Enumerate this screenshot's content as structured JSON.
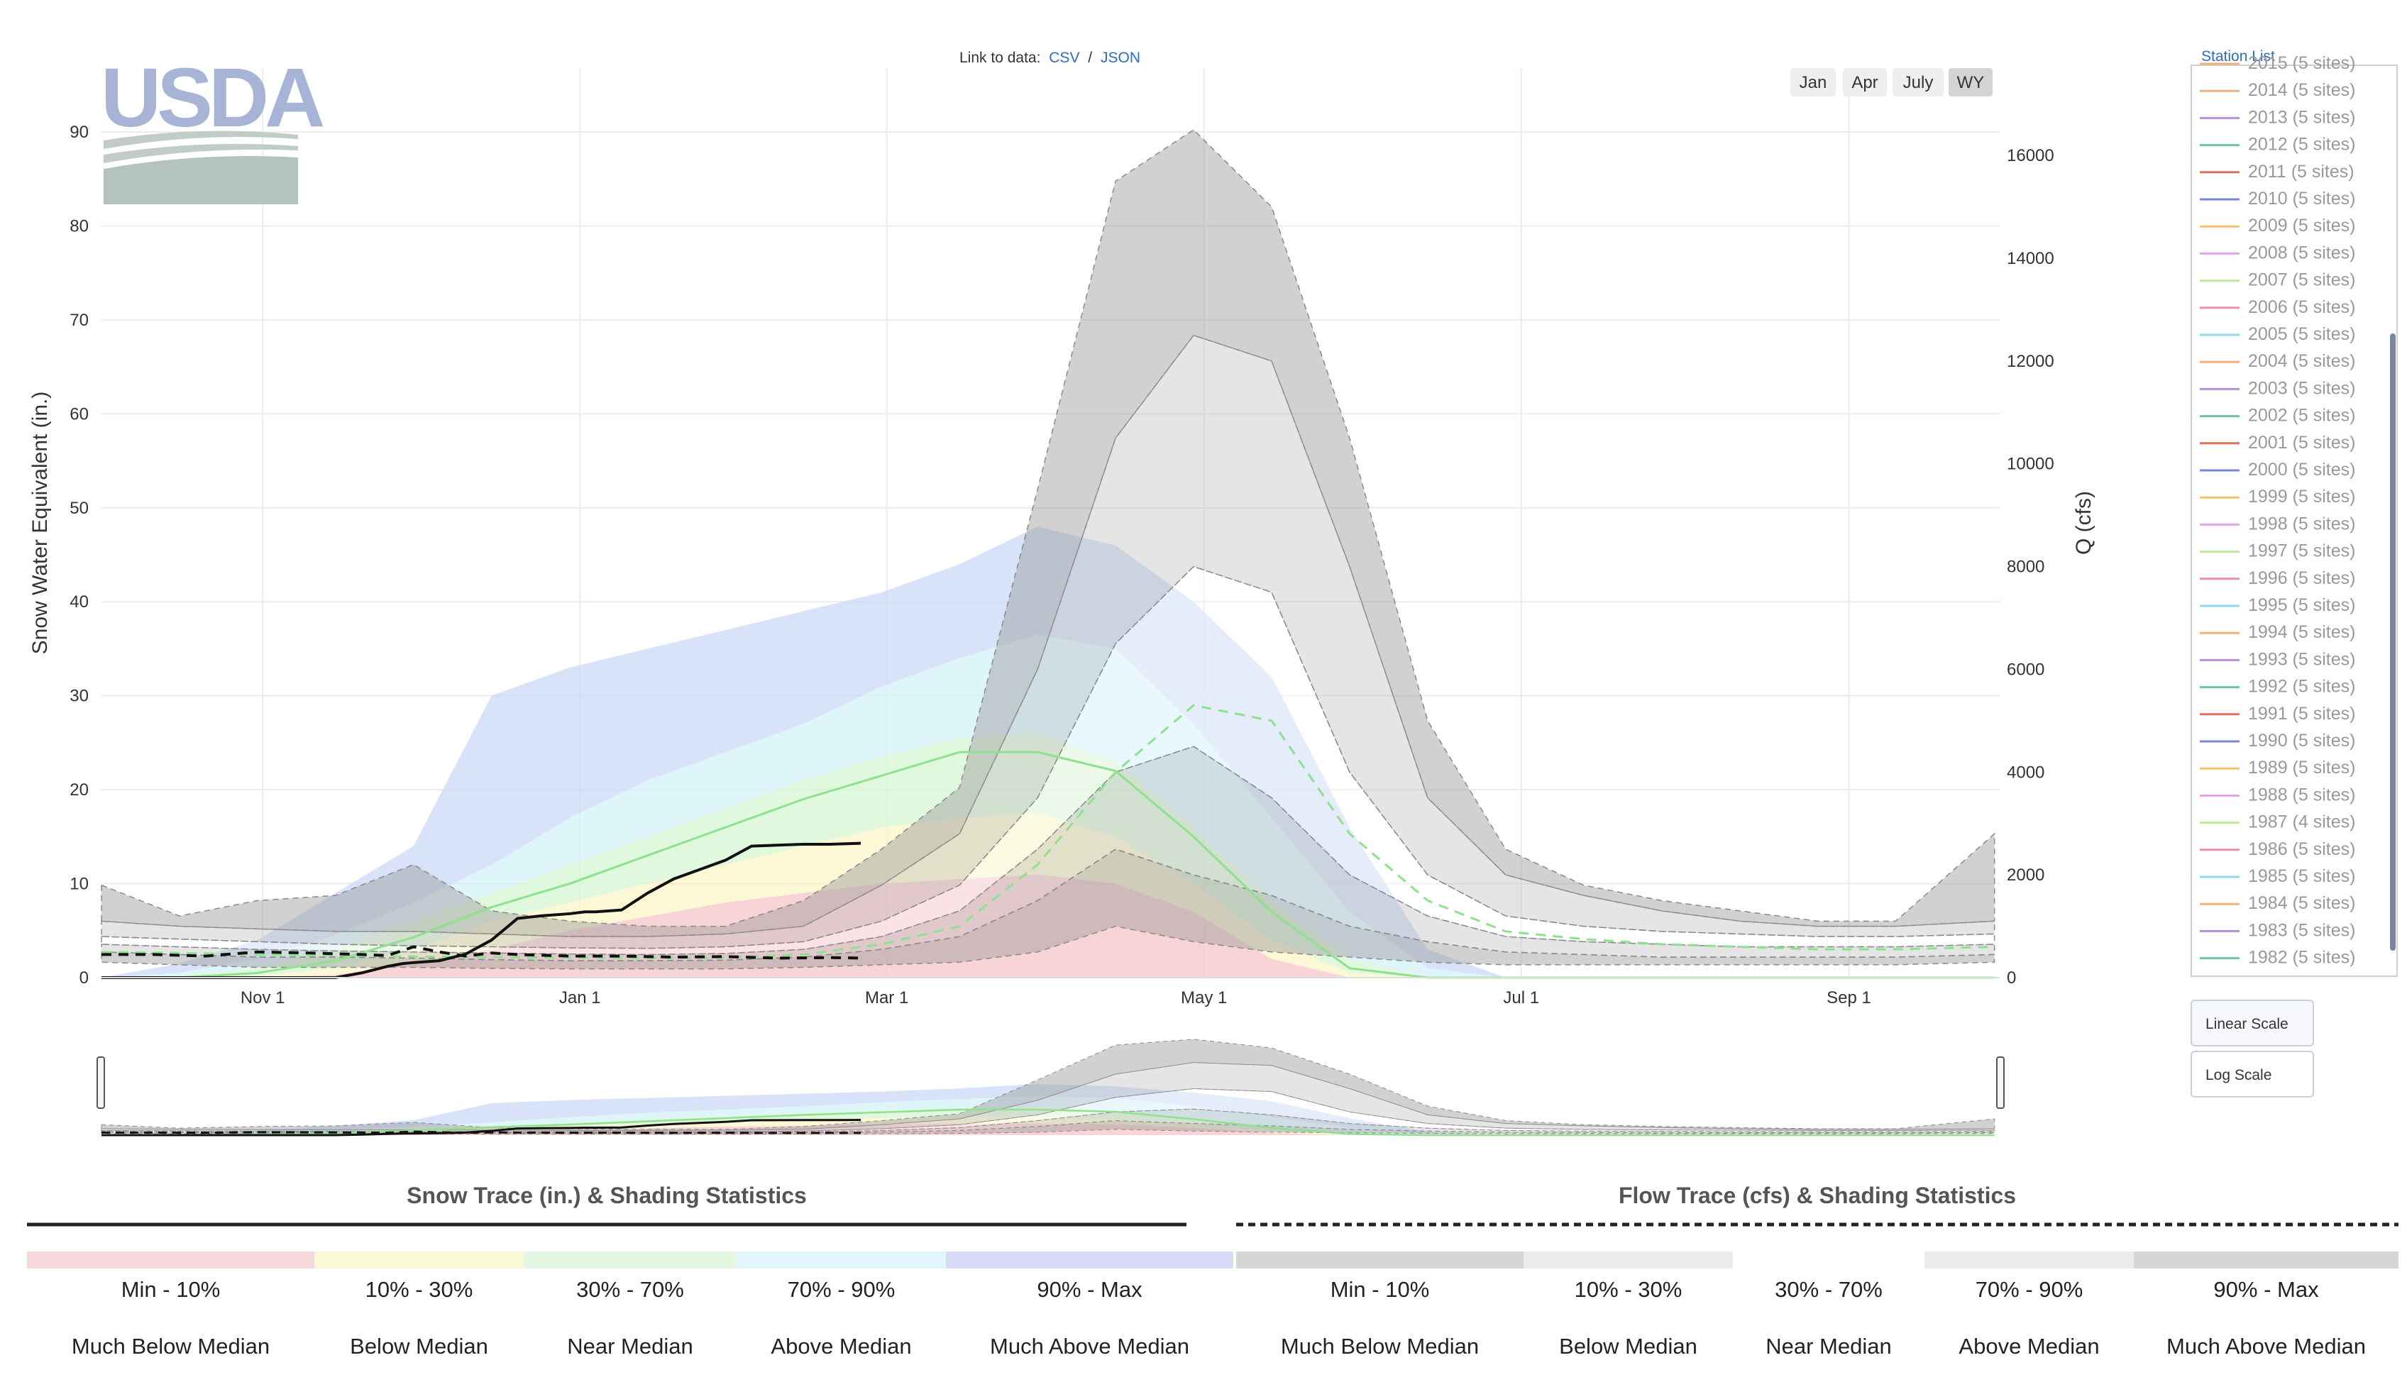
{
  "header": {
    "link_prefix": "Link to data:",
    "csv_label": "CSV",
    "separator": "/",
    "json_label": "JSON"
  },
  "logo": {
    "text": "USDA"
  },
  "range_buttons": [
    {
      "label": "Jan",
      "active": false
    },
    {
      "label": "Apr",
      "active": false
    },
    {
      "label": "July",
      "active": false
    },
    {
      "label": "WY",
      "active": true
    }
  ],
  "station_list": {
    "link": "Station List",
    "entries": [
      {
        "label": "2015 (5 sites)",
        "color": "#f2b07a"
      },
      {
        "label": "2014 (5 sites)",
        "color": "#f2b07a"
      },
      {
        "label": "2013 (5 sites)",
        "color": "#b58ee0"
      },
      {
        "label": "2012 (5 sites)",
        "color": "#6cc4a0"
      },
      {
        "label": "2011 (5 sites)",
        "color": "#e0705a"
      },
      {
        "label": "2010 (5 sites)",
        "color": "#7b82e0"
      },
      {
        "label": "2009 (5 sites)",
        "color": "#f5c36b"
      },
      {
        "label": "2008 (5 sites)",
        "color": "#e7a3e7"
      },
      {
        "label": "2007 (5 sites)",
        "color": "#c4e79a"
      },
      {
        "label": "2006 (5 sites)",
        "color": "#f08cb0"
      },
      {
        "label": "2005 (5 sites)",
        "color": "#8fd8ee"
      },
      {
        "label": "2004 (5 sites)",
        "color": "#f2b07a"
      },
      {
        "label": "2003 (5 sites)",
        "color": "#b58ee0"
      },
      {
        "label": "2002 (5 sites)",
        "color": "#6cc4a0"
      },
      {
        "label": "2001 (5 sites)",
        "color": "#e0705a"
      },
      {
        "label": "2000 (5 sites)",
        "color": "#7b82e0"
      },
      {
        "label": "1999 (5 sites)",
        "color": "#f5c36b"
      },
      {
        "label": "1998 (5 sites)",
        "color": "#e7a3e7"
      },
      {
        "label": "1997 (5 sites)",
        "color": "#c4e79a"
      },
      {
        "label": "1996 (5 sites)",
        "color": "#f08cb0"
      },
      {
        "label": "1995 (5 sites)",
        "color": "#8fd8ee"
      },
      {
        "label": "1994 (5 sites)",
        "color": "#f2b07a"
      },
      {
        "label": "1993 (5 sites)",
        "color": "#b58ee0"
      },
      {
        "label": "1992 (5 sites)",
        "color": "#6cc4a0"
      },
      {
        "label": "1991 (5 sites)",
        "color": "#e0705a"
      },
      {
        "label": "1990 (5 sites)",
        "color": "#7b82e0"
      },
      {
        "label": "1989 (5 sites)",
        "color": "#f5c36b"
      },
      {
        "label": "1988 (5 sites)",
        "color": "#e7a3e7"
      },
      {
        "label": "1987 (4 sites)",
        "color": "#c4e79a"
      },
      {
        "label": "1986 (5 sites)",
        "color": "#f08cb0"
      },
      {
        "label": "1985 (5 sites)",
        "color": "#8fd8ee"
      },
      {
        "label": "1984 (5 sites)",
        "color": "#f2b07a"
      },
      {
        "label": "1983 (5 sites)",
        "color": "#b58ee0"
      },
      {
        "label": "1982 (5 sites)",
        "color": "#6cc4a0"
      }
    ]
  },
  "scale_buttons": {
    "linear": "Linear Scale",
    "log": "Log Scale"
  },
  "chart_data": {
    "type": "area",
    "ylabel_left": "Snow Water Equivalent (in.)",
    "ylabel_right": "Q (cfs)",
    "x_ticks": [
      "Nov  1",
      "Jan  1",
      "Mar  1",
      "May  1",
      "Jul  1",
      "Sep  1"
    ],
    "y_left_ticks": [
      0,
      10,
      20,
      30,
      40,
      50,
      60,
      70,
      80,
      90
    ],
    "y_right_ticks": [
      0,
      2000,
      4000,
      6000,
      8000,
      10000,
      12000,
      14000,
      16000
    ],
    "ylim_left": [
      0,
      96.8
    ],
    "ylim_right": [
      0,
      17700
    ],
    "grid": true,
    "x_unit": "days from Oct 1 (water year)",
    "x": [
      0,
      15,
      30,
      45,
      60,
      75,
      90,
      105,
      120,
      135,
      150,
      165,
      180,
      195,
      210,
      225,
      240,
      255,
      270,
      285,
      300,
      315,
      330,
      345,
      364
    ],
    "swe_bands": {
      "p10": [
        0,
        0,
        0,
        0.3,
        1.5,
        3,
        5,
        6.5,
        8,
        9,
        10,
        10.5,
        11,
        10,
        7,
        2,
        0,
        0,
        0,
        0,
        0,
        0,
        0,
        0,
        0
      ],
      "p30": [
        0,
        0,
        0.2,
        1,
        3,
        6,
        8,
        10,
        12,
        14,
        16,
        17,
        17.5,
        15,
        10,
        4,
        0.5,
        0,
        0,
        0,
        0,
        0,
        0,
        0,
        0
      ],
      "p70": [
        0,
        0.2,
        1,
        3,
        6,
        9,
        12,
        15,
        18,
        21,
        23.5,
        25.5,
        26,
        23,
        16,
        8,
        2,
        0,
        0,
        0,
        0,
        0,
        0,
        0,
        0
      ],
      "p90": [
        0,
        0.5,
        2,
        4.5,
        8,
        12,
        17,
        21,
        24,
        27,
        31,
        34,
        36.5,
        35,
        27,
        17,
        7,
        1,
        0,
        0,
        0,
        0,
        0,
        0,
        0
      ],
      "max": [
        0,
        1.5,
        4,
        9,
        14,
        30,
        33,
        35,
        37,
        39,
        41,
        44,
        48,
        46,
        40,
        32,
        16,
        3,
        0,
        0,
        0,
        0,
        0,
        0,
        0
      ],
      "median": [
        0,
        0,
        0.5,
        1.8,
        4.3,
        7.5,
        10,
        13,
        16,
        19,
        21.5,
        24,
        24,
        22,
        15,
        7,
        1,
        0,
        0,
        0,
        0,
        0,
        0,
        0,
        0
      ]
    },
    "flow_bands": {
      "min": [
        300,
        250,
        200,
        200,
        200,
        180,
        170,
        170,
        170,
        200,
        250,
        300,
        500,
        1000,
        700,
        500,
        400,
        300,
        250,
        250,
        250,
        250,
        250,
        250,
        300
      ],
      "p10": [
        500,
        450,
        400,
        400,
        380,
        350,
        330,
        330,
        340,
        400,
        550,
        800,
        1500,
        2500,
        2000,
        1600,
        1000,
        700,
        500,
        450,
        400,
        400,
        400,
        400,
        450
      ],
      "p30": [
        650,
        600,
        550,
        520,
        500,
        480,
        460,
        450,
        470,
        550,
        800,
        1300,
        2500,
        4000,
        4500,
        3500,
        2000,
        1200,
        800,
        700,
        650,
        600,
        600,
        600,
        650
      ],
      "p70": [
        800,
        750,
        700,
        650,
        620,
        600,
        580,
        570,
        600,
        700,
        1100,
        1800,
        3500,
        6500,
        8000,
        7500,
        4000,
        2000,
        1200,
        1000,
        900,
        850,
        800,
        800,
        850
      ],
      "p90": [
        1100,
        1000,
        950,
        900,
        900,
        850,
        800,
        800,
        850,
        1000,
        1800,
        2800,
        6000,
        10500,
        12500,
        12000,
        8000,
        3500,
        2000,
        1600,
        1300,
        1100,
        1000,
        1000,
        1100
      ],
      "max": [
        1800,
        1200,
        1500,
        1600,
        2200,
        1300,
        1100,
        1000,
        1000,
        1500,
        2500,
        3700,
        9500,
        15500,
        16500,
        15000,
        10500,
        5000,
        2500,
        1800,
        1500,
        1300,
        1100,
        1100,
        2800
      ],
      "median": [
        500,
        480,
        450,
        430,
        410,
        400,
        390,
        380,
        390,
        450,
        650,
        1000,
        2200,
        4000,
        5300,
        5000,
        2800,
        1500,
        900,
        750,
        650,
        600,
        550,
        550,
        600
      ]
    },
    "current_swe": {
      "x": [
        0,
        20,
        30,
        35,
        40,
        45,
        50,
        55,
        58,
        60,
        65,
        70,
        75,
        80,
        85,
        90,
        93,
        95,
        100,
        105,
        110,
        115,
        120,
        125,
        130,
        135,
        140,
        146
      ],
      "y": [
        0,
        0,
        0,
        0,
        0,
        0,
        0.5,
        1.2,
        1.5,
        1.6,
        1.8,
        2.5,
        4,
        6.3,
        6.6,
        6.8,
        7.0,
        7.0,
        7.2,
        9.0,
        10.5,
        11.5,
        12.5,
        14.0,
        14.1,
        14.2,
        14.2,
        14.3
      ]
    },
    "current_flow": {
      "x": [
        0,
        10,
        20,
        30,
        40,
        50,
        55,
        60,
        65,
        70,
        75,
        80,
        90,
        100,
        110,
        120,
        130,
        140,
        146
      ],
      "y": [
        450,
        450,
        420,
        500,
        480,
        450,
        430,
        600,
        500,
        420,
        480,
        450,
        420,
        420,
        400,
        410,
        380,
        390,
        380
      ]
    }
  },
  "legend": {
    "snow": {
      "title": "Snow Trace (in.) & Shading Statistics",
      "items": [
        {
          "range": "Min - 10%",
          "desc": "Much Below Median",
          "color": "#f7d8da"
        },
        {
          "range": "10% - 30%",
          "desc": "Below Median",
          "color": "#fbf8d6"
        },
        {
          "range": "30% - 70%",
          "desc": "Near Median",
          "color": "#e3f7e3"
        },
        {
          "range": "70% - 90%",
          "desc": "Above Median",
          "color": "#dff7fb"
        },
        {
          "range": "90% - Max",
          "desc": "Much Above Median",
          "color": "#d9daf6"
        }
      ]
    },
    "flow": {
      "title": "Flow Trace (cfs) & Shading Statistics",
      "items": [
        {
          "range": "Min - 10%",
          "desc": "Much Below Median",
          "color": "#d6d6d6"
        },
        {
          "range": "10% - 30%",
          "desc": "Below Median",
          "color": "#ebebeb"
        },
        {
          "range": "30% - 70%",
          "desc": "Near Median",
          "color": "#ffffff"
        },
        {
          "range": "70% - 90%",
          "desc": "Above Median",
          "color": "#ebebeb"
        },
        {
          "range": "90% - Max",
          "desc": "Much Above Median",
          "color": "#d6d6d6"
        }
      ]
    }
  }
}
